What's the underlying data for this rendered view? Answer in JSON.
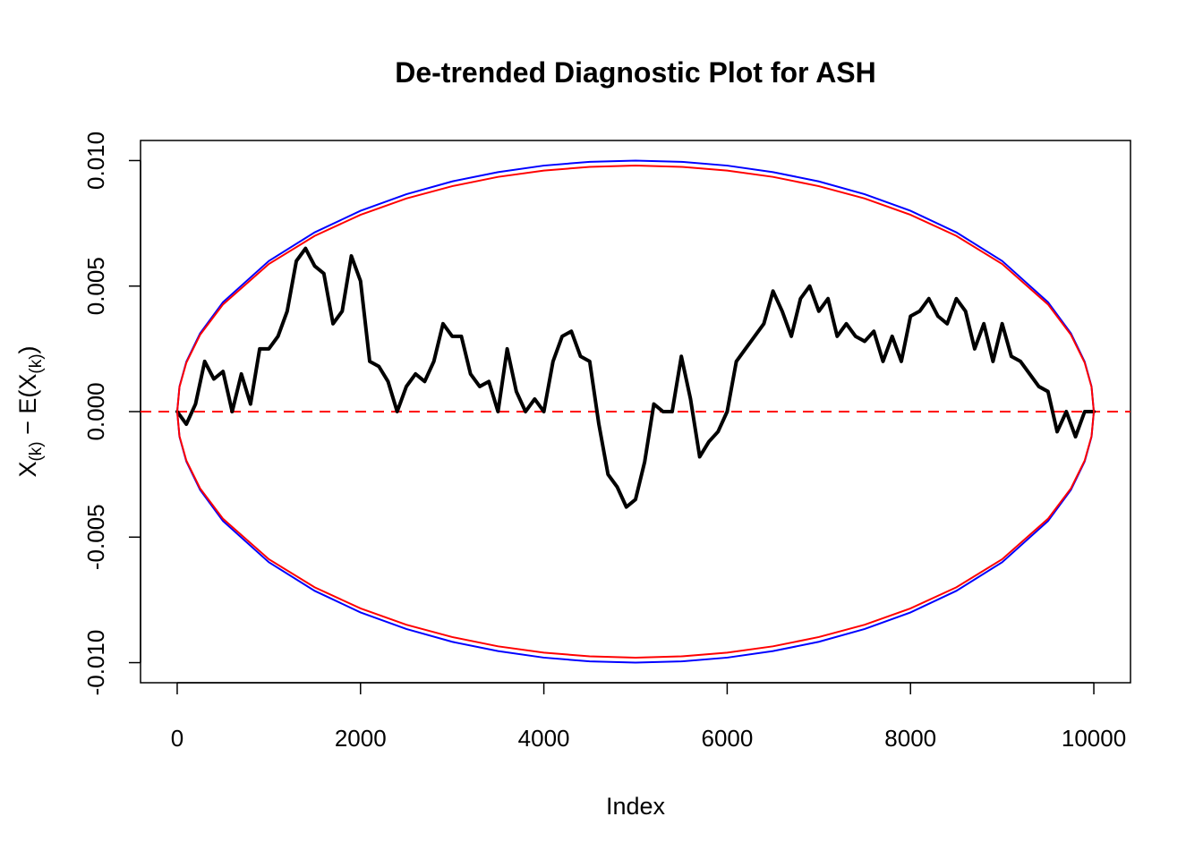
{
  "chart_data": {
    "type": "line",
    "title": "De-trended Diagnostic Plot for ASH",
    "xlabel": "Index",
    "ylabel": [
      "X",
      "(k)",
      " − E(X",
      "(k)",
      ")"
    ],
    "xlim": [
      -400,
      10400
    ],
    "ylim": [
      -0.0108,
      0.0108
    ],
    "xticks": [
      0,
      2000,
      4000,
      6000,
      8000,
      10000
    ],
    "yticks": [
      {
        "value": -0.01,
        "label": "-0.010"
      },
      {
        "value": -0.005,
        "label": "-0.005"
      },
      {
        "value": 0,
        "label": "0.000"
      },
      {
        "value": 0.005,
        "label": "0.005"
      },
      {
        "value": 0.01,
        "label": "0.010"
      }
    ],
    "reference_line": {
      "value": 0,
      "color": "#ff0000",
      "dashed": true
    },
    "points": {
      "color": "#000000",
      "x": [
        0,
        100,
        200,
        300,
        400,
        500,
        600,
        700,
        800,
        900,
        1000,
        1100,
        1200,
        1300,
        1400,
        1500,
        1600,
        1700,
        1800,
        1900,
        2000,
        2100,
        2200,
        2300,
        2400,
        2500,
        2600,
        2700,
        2800,
        2900,
        3000,
        3100,
        3200,
        3300,
        3400,
        3500,
        3600,
        3700,
        3800,
        3900,
        4000,
        4100,
        4200,
        4300,
        4400,
        4500,
        4600,
        4700,
        4800,
        4900,
        5000,
        5100,
        5200,
        5300,
        5400,
        5500,
        5600,
        5700,
        5800,
        5900,
        6000,
        6100,
        6200,
        6300,
        6400,
        6500,
        6600,
        6700,
        6800,
        6900,
        7000,
        7100,
        7200,
        7300,
        7400,
        7500,
        7600,
        7700,
        7800,
        7900,
        8000,
        8100,
        8200,
        8300,
        8400,
        8500,
        8600,
        8700,
        8800,
        8900,
        9000,
        9100,
        9200,
        9300,
        9400,
        9500,
        9600,
        9700,
        9800,
        9900,
        10000
      ],
      "values": [
        0,
        -0.0005,
        0.0003,
        0.002,
        0.0013,
        0.0016,
        0,
        0.0015,
        0.0003,
        0.0025,
        0.0025,
        0.003,
        0.004,
        0.006,
        0.0065,
        0.0058,
        0.0055,
        0.0035,
        0.004,
        0.0062,
        0.0052,
        0.002,
        0.0018,
        0.0012,
        0,
        0.001,
        0.0015,
        0.0012,
        0.002,
        0.0035,
        0.003,
        0.003,
        0.0015,
        0.001,
        0.0012,
        0,
        0.0025,
        0.0008,
        0,
        0.0005,
        0,
        0.002,
        0.003,
        0.0032,
        0.0022,
        0.002,
        -0.0005,
        -0.0025,
        -0.003,
        -0.0038,
        -0.0035,
        -0.002,
        0.0003,
        0,
        0,
        0.0022,
        0.0005,
        -0.0018,
        -0.0012,
        -0.0008,
        0,
        0.002,
        0.0025,
        0.003,
        0.0035,
        0.0048,
        0.004,
        0.003,
        0.0045,
        0.005,
        0.004,
        0.0045,
        0.003,
        0.0035,
        0.003,
        0.0028,
        0.0032,
        0.002,
        0.003,
        0.002,
        0.0038,
        0.004,
        0.0045,
        0.0038,
        0.0035,
        0.0045,
        0.004,
        0.0025,
        0.0035,
        0.002,
        0.0035,
        0.0022,
        0.002,
        0.0015,
        0.001,
        0.0008,
        -0.0008,
        0,
        -0.001,
        0,
        0
      ]
    },
    "band_x": [
      0,
      25,
      100,
      250,
      500,
      1000,
      1500,
      2000,
      2500,
      3000,
      3500,
      4000,
      4500,
      5000,
      5500,
      6000,
      6500,
      7000,
      7500,
      8000,
      8500,
      9000,
      9500,
      9750,
      9900,
      9975,
      10000
    ],
    "series": [
      {
        "color": "#0000ff",
        "values": [
          0,
          0.000999,
          0.00199,
          0.00312,
          0.00436,
          0.006,
          0.00714,
          0.008,
          0.00866,
          0.00917,
          0.00954,
          0.0098,
          0.00995,
          0.01,
          0.00995,
          0.0098,
          0.00954,
          0.00917,
          0.00866,
          0.008,
          0.00714,
          0.006,
          0.00436,
          0.00312,
          0.00199,
          0.000999,
          0
        ]
      },
      {
        "color": "#0000ff",
        "values": [
          0,
          -0.000999,
          -0.00199,
          -0.00312,
          -0.00436,
          -0.006,
          -0.00714,
          -0.008,
          -0.00866,
          -0.00917,
          -0.00954,
          -0.0098,
          -0.00995,
          -0.01,
          -0.00995,
          -0.0098,
          -0.00954,
          -0.00917,
          -0.00866,
          -0.008,
          -0.00714,
          -0.006,
          -0.00436,
          -0.00312,
          -0.00199,
          -0.000999,
          0
        ]
      },
      {
        "color": "#ff0000",
        "values": [
          0,
          0.00098,
          0.00195,
          0.00306,
          0.00427,
          0.00588,
          0.007,
          0.00784,
          0.00849,
          0.00898,
          0.00935,
          0.0096,
          0.00975,
          0.0098,
          0.00975,
          0.0096,
          0.00935,
          0.00898,
          0.00849,
          0.00784,
          0.007,
          0.00588,
          0.00427,
          0.00306,
          0.00195,
          0.00098,
          0
        ]
      },
      {
        "color": "#ff0000",
        "values": [
          0,
          -0.00098,
          -0.00195,
          -0.00306,
          -0.00427,
          -0.00588,
          -0.007,
          -0.00784,
          -0.00849,
          -0.00898,
          -0.00935,
          -0.0096,
          -0.00975,
          -0.0098,
          -0.00975,
          -0.0096,
          -0.00935,
          -0.00898,
          -0.00849,
          -0.00784,
          -0.007,
          -0.00588,
          -0.00427,
          -0.00306,
          -0.00195,
          -0.00098,
          0
        ]
      }
    ]
  }
}
